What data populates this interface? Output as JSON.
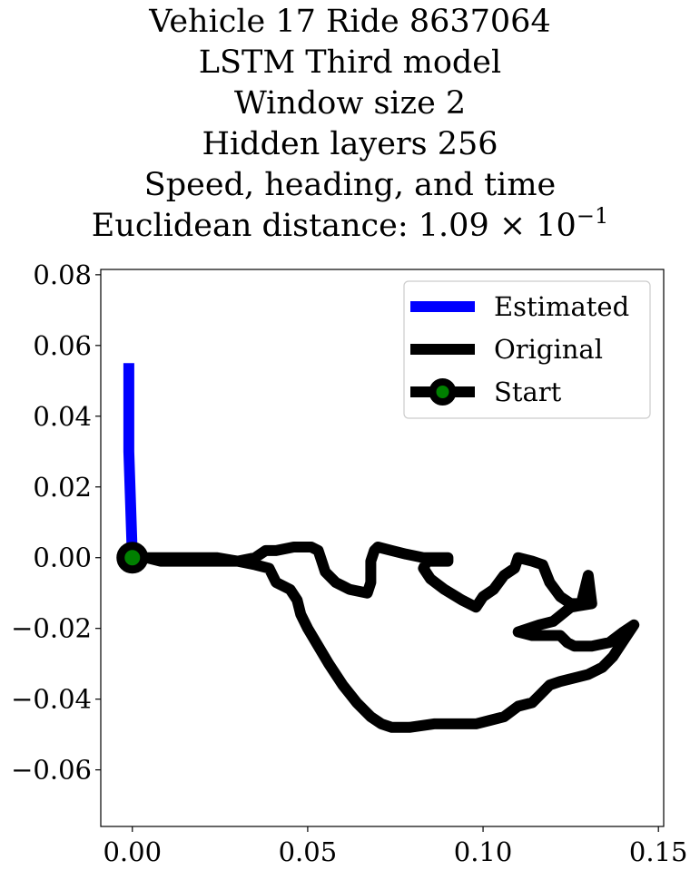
{
  "chart_data": {
    "type": "line",
    "title_lines": [
      "Vehicle 17 Ride 8637064",
      "LSTM Third model",
      "Window size 2",
      "Hidden layers 256",
      "Speed, heading, and time"
    ],
    "title_distance_prefix": "Euclidean distance: 1.09 × 10",
    "title_distance_exponent": "−1",
    "xlim": [
      -0.009,
      0.1515
    ],
    "ylim": [
      -0.076,
      0.0815
    ],
    "x_ticks": [
      0.0,
      0.05,
      0.1,
      0.15
    ],
    "x_tick_labels": [
      "0.00",
      "0.05",
      "0.10",
      "0.15"
    ],
    "y_ticks": [
      0.08,
      0.06,
      0.04,
      0.02,
      0.0,
      -0.02,
      -0.04,
      -0.06
    ],
    "y_tick_labels": [
      "0.08",
      "0.06",
      "0.04",
      "0.02",
      "0.00",
      "−0.02",
      "−0.04",
      "−0.06"
    ],
    "grid": false,
    "legend_position": "top-right",
    "series": [
      {
        "name": "Estimated",
        "color": "#0000ff",
        "points": [
          [
            -0.001,
            0.055
          ],
          [
            -0.001,
            0.03
          ],
          [
            0.0,
            0.0
          ]
        ]
      },
      {
        "name": "Original",
        "color": "#000000",
        "points": [
          [
            0.0,
            0.0
          ],
          [
            0.004,
            0.0
          ],
          [
            0.008,
            -0.001
          ],
          [
            0.013,
            -0.001
          ],
          [
            0.018,
            -0.001
          ],
          [
            0.024,
            -0.001
          ],
          [
            0.03,
            -0.001
          ],
          [
            0.035,
            0.0
          ],
          [
            0.038,
            0.002
          ],
          [
            0.041,
            0.002
          ],
          [
            0.046,
            0.003
          ],
          [
            0.051,
            0.003
          ],
          [
            0.053,
            0.002
          ],
          [
            0.054,
            -0.001
          ],
          [
            0.055,
            -0.004
          ],
          [
            0.058,
            -0.007
          ],
          [
            0.062,
            -0.009
          ],
          [
            0.067,
            -0.01
          ],
          [
            0.068,
            -0.007
          ],
          [
            0.068,
            -0.004
          ],
          [
            0.068,
            -0.001
          ],
          [
            0.069,
            0.002
          ],
          [
            0.07,
            0.003
          ],
          [
            0.074,
            0.002
          ],
          [
            0.078,
            0.001
          ],
          [
            0.083,
            0.0
          ],
          [
            0.087,
            0.0
          ],
          [
            0.09,
            0.0
          ],
          [
            0.09,
            -0.001
          ],
          [
            0.087,
            -0.001
          ],
          [
            0.084,
            -0.001
          ],
          [
            0.083,
            -0.003
          ],
          [
            0.085,
            -0.006
          ],
          [
            0.089,
            -0.009
          ],
          [
            0.094,
            -0.012
          ],
          [
            0.098,
            -0.014
          ],
          [
            0.1,
            -0.011
          ],
          [
            0.103,
            -0.009
          ],
          [
            0.106,
            -0.005
          ],
          [
            0.109,
            -0.003
          ],
          [
            0.11,
            0.0
          ],
          [
            0.114,
            -0.001
          ],
          [
            0.117,
            -0.002
          ],
          [
            0.119,
            -0.007
          ],
          [
            0.122,
            -0.011
          ],
          [
            0.125,
            -0.013
          ],
          [
            0.128,
            -0.013
          ],
          [
            0.13,
            -0.005
          ],
          [
            0.131,
            -0.013
          ],
          [
            0.125,
            -0.014
          ],
          [
            0.12,
            -0.018
          ],
          [
            0.116,
            -0.019
          ],
          [
            0.113,
            -0.02
          ],
          [
            0.11,
            -0.021
          ],
          [
            0.114,
            -0.022
          ],
          [
            0.118,
            -0.022
          ],
          [
            0.12,
            -0.022
          ],
          [
            0.122,
            -0.022
          ],
          [
            0.124,
            -0.024
          ],
          [
            0.126,
            -0.025
          ],
          [
            0.131,
            -0.025
          ],
          [
            0.136,
            -0.024
          ],
          [
            0.14,
            -0.021
          ],
          [
            0.143,
            -0.019
          ],
          [
            0.141,
            -0.022
          ],
          [
            0.139,
            -0.025
          ],
          [
            0.137,
            -0.028
          ],
          [
            0.134,
            -0.031
          ],
          [
            0.13,
            -0.033
          ],
          [
            0.126,
            -0.034
          ],
          [
            0.122,
            -0.035
          ],
          [
            0.119,
            -0.036
          ],
          [
            0.116,
            -0.039
          ],
          [
            0.114,
            -0.041
          ],
          [
            0.11,
            -0.042
          ],
          [
            0.106,
            -0.045
          ],
          [
            0.102,
            -0.046
          ],
          [
            0.098,
            -0.047
          ],
          [
            0.092,
            -0.047
          ],
          [
            0.086,
            -0.047
          ],
          [
            0.079,
            -0.048
          ],
          [
            0.074,
            -0.048
          ],
          [
            0.071,
            -0.047
          ],
          [
            0.068,
            -0.045
          ],
          [
            0.064,
            -0.041
          ],
          [
            0.06,
            -0.036
          ],
          [
            0.056,
            -0.03
          ],
          [
            0.053,
            -0.025
          ],
          [
            0.05,
            -0.02
          ],
          [
            0.048,
            -0.016
          ],
          [
            0.047,
            -0.012
          ],
          [
            0.045,
            -0.009
          ],
          [
            0.041,
            -0.007
          ],
          [
            0.039,
            -0.003
          ],
          [
            0.035,
            -0.002
          ],
          [
            0.03,
            -0.001
          ],
          [
            0.024,
            0.0
          ],
          [
            0.018,
            0.0
          ],
          [
            0.012,
            0.0
          ],
          [
            0.007,
            0.0
          ],
          [
            0.0,
            0.0
          ]
        ]
      }
    ],
    "start_marker": {
      "name": "Start",
      "point": [
        0.0,
        0.0
      ],
      "face_color": "#008000",
      "edge_color": "#000000"
    }
  }
}
